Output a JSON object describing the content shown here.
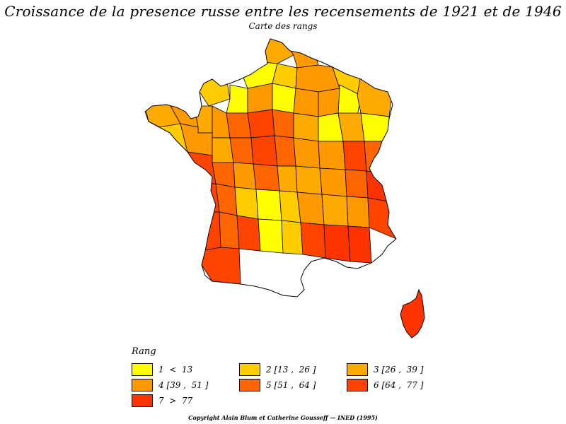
{
  "title": "Croissance de la presence russe entre les recensements de 1921 et de 1946",
  "subtitle": "Carte des rangs",
  "legend": {
    "title": "Rang",
    "items": [
      {
        "label": "1  <  13",
        "color": "#ffff00"
      },
      {
        "label": "2 [13 ,  26 ]",
        "color": "#ffcc00"
      },
      {
        "label": "3 [26 ,  39 ]",
        "color": "#ffaa00"
      },
      {
        "label": "4 [39 ,  51 ]",
        "color": "#ff9900"
      },
      {
        "label": "5 [51 ,  64 ]",
        "color": "#ff6600"
      },
      {
        "label": "6 [64 ,  77 ]",
        "color": "#ff4400"
      },
      {
        "label": "7  >  77",
        "color": "#ff3300"
      }
    ]
  },
  "copyright": "Copyright  Alain  Blum  et  Catherine  Gousseff  —  INED  (1995)",
  "map": {
    "regions": [
      {
        "class": 3
      },
      {
        "class": 4
      },
      {
        "class": 1
      },
      {
        "class": 2
      },
      {
        "class": 4
      },
      {
        "class": 2
      },
      {
        "class": 1
      },
      {
        "class": 3
      },
      {
        "class": 2
      },
      {
        "class": 1
      },
      {
        "class": 4
      },
      {
        "class": 1
      },
      {
        "class": 4
      },
      {
        "class": 4
      },
      {
        "class": 3
      },
      {
        "class": 4
      },
      {
        "class": 3
      },
      {
        "class": 4
      },
      {
        "class": 5
      },
      {
        "class": 6
      },
      {
        "class": 5
      },
      {
        "class": 3
      },
      {
        "class": 1
      },
      {
        "class": 3
      },
      {
        "class": 1
      },
      {
        "class": 2
      },
      {
        "class": 4
      },
      {
        "class": 3
      },
      {
        "class": 5
      },
      {
        "class": 6
      },
      {
        "class": 5
      },
      {
        "class": 4
      },
      {
        "class": 4
      },
      {
        "class": 6
      },
      {
        "class": 5
      },
      {
        "class": 6
      },
      {
        "class": 5
      },
      {
        "class": 4
      },
      {
        "class": 5
      },
      {
        "class": 3
      },
      {
        "class": 3
      },
      {
        "class": 4
      },
      {
        "class": 5
      },
      {
        "class": 7
      },
      {
        "class": 6
      },
      {
        "class": 5
      },
      {
        "class": 2
      },
      {
        "class": 1
      },
      {
        "class": 2
      },
      {
        "class": 4
      },
      {
        "class": 3
      },
      {
        "class": 4
      },
      {
        "class": 6
      },
      {
        "class": 6
      },
      {
        "class": 5
      },
      {
        "class": 6
      },
      {
        "class": 1
      },
      {
        "class": 2
      },
      {
        "class": 6
      },
      {
        "class": 7
      },
      {
        "class": 7
      },
      {
        "class": 6
      }
    ]
  }
}
